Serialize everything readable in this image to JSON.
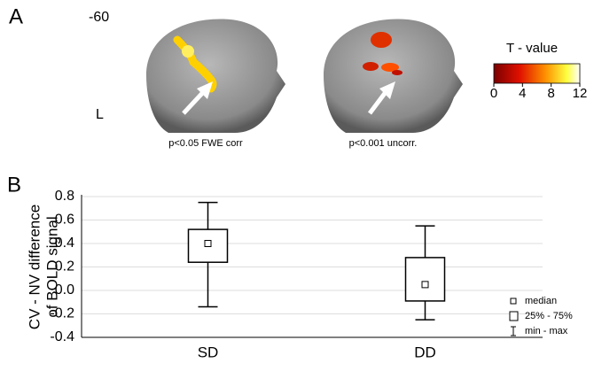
{
  "panel_a": {
    "label": "A",
    "slice": "-60",
    "side": "L",
    "images": [
      {
        "caption": "p<0.05 FWE corr"
      },
      {
        "caption": "p<0.001 uncorr."
      }
    ],
    "colorbar": {
      "title": "T - value",
      "lim": [
        0,
        12
      ],
      "ticks": [
        0,
        4,
        8,
        12
      ]
    }
  },
  "chart_data": {
    "type": "box",
    "panel_label": "B",
    "ylabel": [
      "CV - NV difference",
      "of BOLD signal"
    ],
    "categories": [
      "SD",
      "DD"
    ],
    "min": [
      -0.14,
      -0.25
    ],
    "q1": [
      0.24,
      -0.09
    ],
    "median": [
      0.4,
      0.05
    ],
    "q3": [
      0.52,
      0.28
    ],
    "max": [
      0.75,
      0.55
    ],
    "color": "#000000",
    "ylim": [
      -0.4,
      0.8
    ],
    "yticks": [
      -0.4,
      -0.2,
      {
        "value": 0,
        "label": "0.0"
      },
      0.2,
      0.4,
      0.6,
      0.8
    ],
    "grid": true,
    "legend": [
      "median",
      "25% - 75%",
      "min - max"
    ]
  }
}
